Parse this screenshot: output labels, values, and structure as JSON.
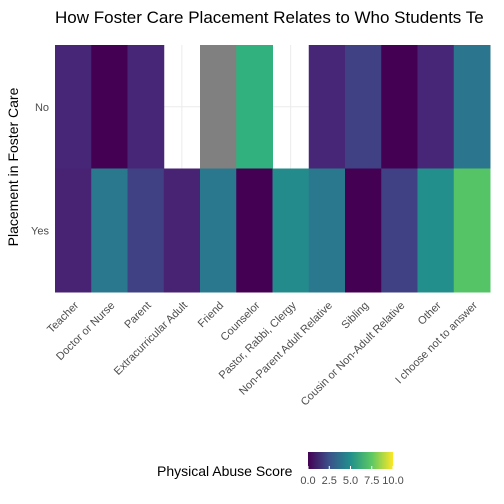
{
  "chart_data": {
    "type": "heatmap",
    "title": "How Foster Care Placement Relates to Who Students Te",
    "xlabel": "",
    "ylabel": "Placement in Foster Care",
    "categories": [
      "Teacher",
      "Doctor or Nurse",
      "Parent",
      "Extracurricular Adult",
      "Friend",
      "Counselor",
      "Pastor, Rabbi, Clergy",
      "Non-Parent Adult Relative",
      "Sibling",
      "Cousin or Non-Adult Relative",
      "Other",
      "I choose not to answer"
    ],
    "rows": [
      "No",
      "Yes"
    ],
    "values": [
      [
        1.2,
        0.0,
        1.2,
        null,
        "NA",
        7.2,
        null,
        1.2,
        2.2,
        0.0,
        1.2,
        4.4
      ],
      [
        1.1,
        4.5,
        2.2,
        1.1,
        4.5,
        0.0,
        5.4,
        4.5,
        0.0,
        2.2,
        5.6,
        8.2
      ]
    ],
    "na_color": "#808080",
    "legend": {
      "title": "Physical Abuse Score",
      "ticks": [
        "0.0",
        "2.5",
        "5.0",
        "7.5",
        "10.0"
      ],
      "range": [
        0,
        10
      ],
      "position": "bottom"
    },
    "colors": {
      "low": "#440154",
      "high": "#fde725"
    },
    "grid": true
  }
}
